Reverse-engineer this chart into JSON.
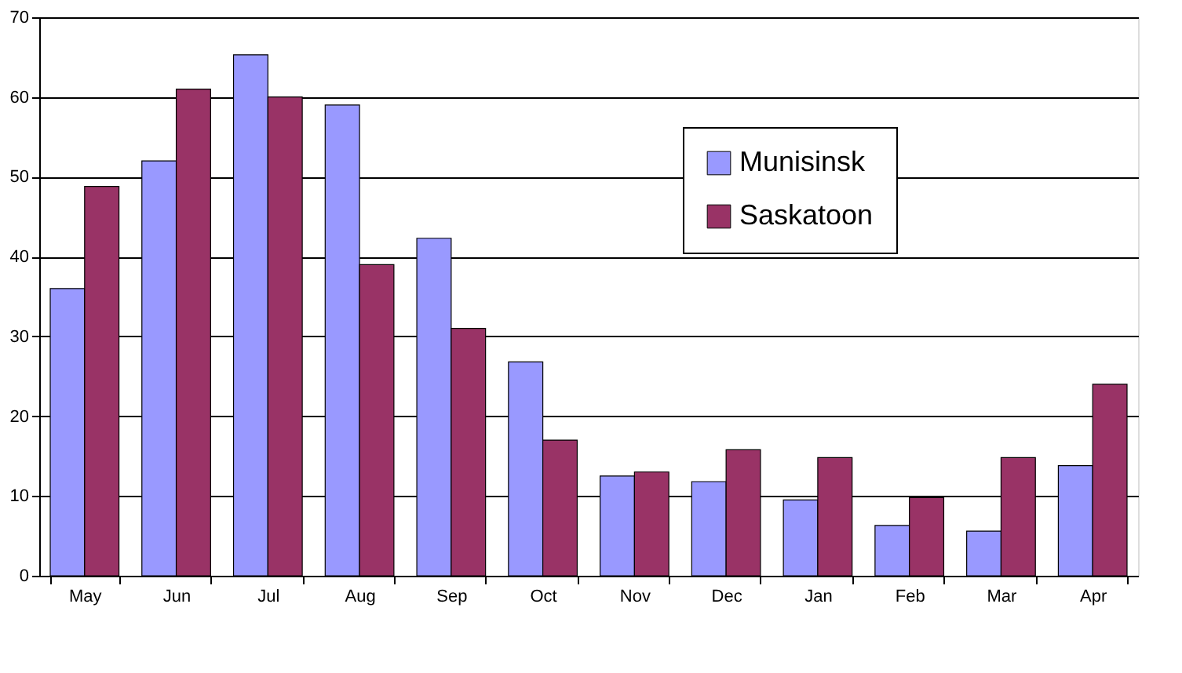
{
  "chart_data": {
    "type": "bar",
    "categories": [
      "May",
      "Jun",
      "Jul",
      "Aug",
      "Sep",
      "Oct",
      "Nov",
      "Dec",
      "Jan",
      "Feb",
      "Mar",
      "Apr"
    ],
    "series": [
      {
        "name": "Munisinsk",
        "color": "#9999ff",
        "values": [
          36,
          52,
          65.3,
          59,
          42.3,
          26.8,
          12.5,
          11.8,
          9.5,
          6.3,
          5.6,
          13.8
        ]
      },
      {
        "name": "Saskatoon",
        "color": "#993366",
        "values": [
          48.8,
          61,
          60,
          39,
          31,
          17,
          13,
          15.8,
          14.8,
          9.8,
          14.8,
          24
        ]
      }
    ],
    "ylim": [
      0,
      70
    ],
    "yticks": [
      0,
      10,
      20,
      30,
      40,
      50,
      60,
      70
    ],
    "grid": "y",
    "legend": "top right"
  }
}
